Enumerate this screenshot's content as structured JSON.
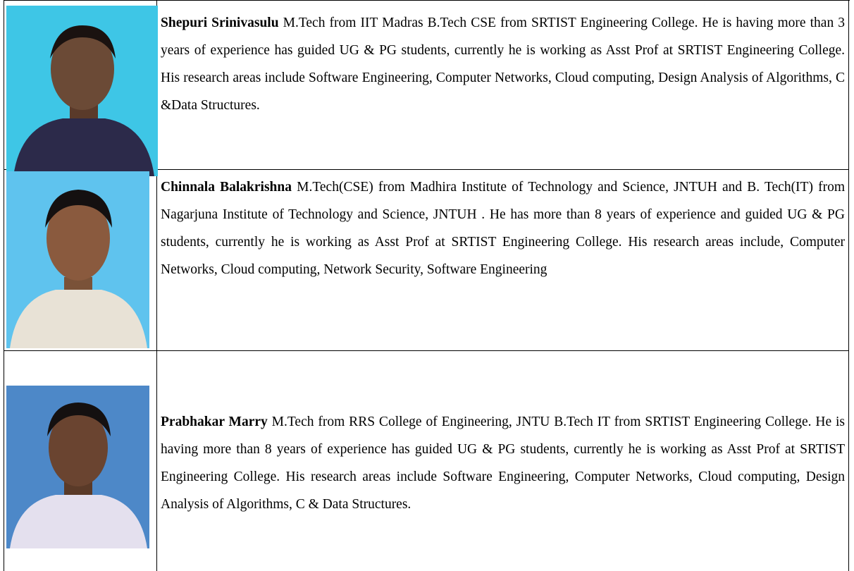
{
  "authors": [
    {
      "name": "Shepuri Srinivasulu",
      "bio": "M.Tech from IIT Madras B.Tech CSE  from SRTIST Engineering College. He is having more than 3 years of experience has guided UG & PG students, currently he is working as Asst Prof at SRTIST Engineering College. His research areas include Software Engineering, Computer Networks, Cloud computing, Design Analysis of Algorithms, C &Data Structures."
    },
    {
      "name": "Chinnala Balakrishna",
      "bio": "M.Tech(CSE) from Madhira Institute of Technology and Science, JNTUH and  B. Tech(IT)  from Nagarjuna Institute of Technology and Science, JNTUH . He has more than 8 years of experience and guided UG & PG students, currently he is working as Asst Prof at SRTIST Engineering College. His research areas include, Computer Networks, Cloud computing, Network Security, Software Engineering"
    },
    {
      "name": "Prabhakar Marry",
      "bio": "M.Tech from RRS College of Engineering, JNTU B.Tech IT from SRTIST Engineering College. He is having more than 8 years of experience has guided UG & PG students, currently he is working as Asst Prof at SRTIST Engineering College. His research areas include Software Engineering, Computer Networks, Cloud computing, Design Analysis of Algorithms, C & Data Structures."
    }
  ]
}
